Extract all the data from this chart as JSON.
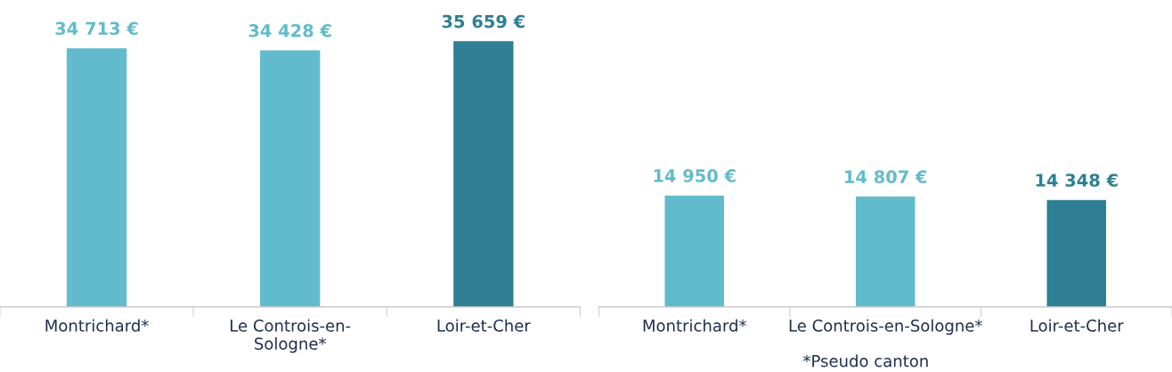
{
  "chart_data": [
    {
      "type": "bar",
      "categories": [
        "Montrichard*",
        "Le Controis-en-\nSologne*",
        "Loir-et-Cher"
      ],
      "values": [
        34713,
        34428,
        35659
      ],
      "colors": [
        "#62bbcc",
        "#62bbcc",
        "#2e7f93"
      ],
      "data_labels": true,
      "value_labels": [
        "34 713 €",
        "34 428 €",
        "35 659 €"
      ],
      "grid": false,
      "legend": false
    },
    {
      "type": "bar",
      "categories": [
        "Montrichard*",
        "Le Controis-en-Sologne*",
        "Loir-et-Cher"
      ],
      "values": [
        14950,
        14807,
        14348
      ],
      "colors": [
        "#62bbcc",
        "#62bbcc",
        "#2e7f93"
      ],
      "data_labels": true,
      "value_labels": [
        "14 950 €",
        "14 807 €",
        "14 348 €"
      ],
      "grid": false,
      "legend": false,
      "annotations": [
        "*Pseudo canton"
      ]
    }
  ]
}
